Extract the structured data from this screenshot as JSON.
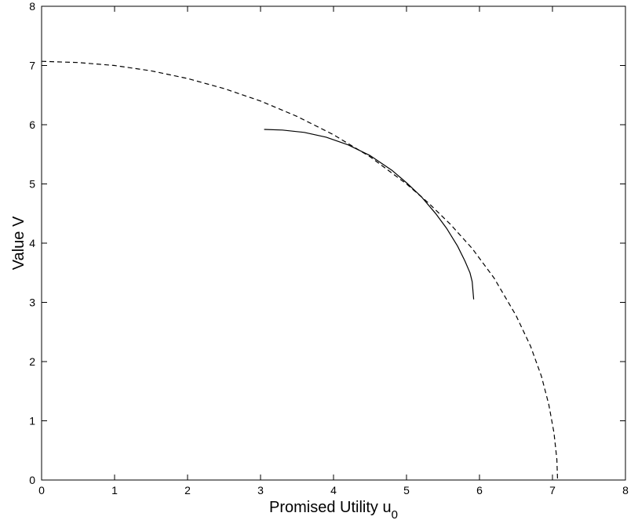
{
  "chart_data": {
    "type": "line",
    "title": "",
    "xlabel": "Promised Utility u",
    "xlabel_sub": "0",
    "ylabel": "Value V",
    "xlim": [
      0,
      8
    ],
    "ylim": [
      0,
      8
    ],
    "xticks": [
      0,
      1,
      2,
      3,
      4,
      5,
      6,
      7,
      8
    ],
    "yticks": [
      0,
      1,
      2,
      3,
      4,
      5,
      6,
      7,
      8
    ],
    "grid": false,
    "legend": "none",
    "series": [
      {
        "style": "dashed",
        "color": "#000000",
        "x": [
          0.0,
          0.5,
          1.0,
          1.5,
          2.0,
          2.5,
          3.0,
          3.5,
          4.0,
          4.5,
          5.0,
          5.3,
          5.6,
          5.9,
          6.2,
          6.5,
          6.7,
          6.85,
          6.95,
          7.02,
          7.06,
          7.07
        ],
        "y": [
          7.07,
          7.05,
          7.0,
          6.91,
          6.78,
          6.61,
          6.4,
          6.14,
          5.83,
          5.46,
          5.0,
          4.68,
          4.32,
          3.91,
          3.41,
          2.78,
          2.26,
          1.75,
          1.27,
          0.8,
          0.35,
          0.0
        ]
      },
      {
        "style": "solid",
        "color": "#000000",
        "x": [
          3.05,
          3.3,
          3.6,
          3.9,
          4.2,
          4.5,
          4.8,
          5.0,
          5.2,
          5.4,
          5.55,
          5.7,
          5.8,
          5.87,
          5.9,
          5.92
        ],
        "y": [
          5.92,
          5.91,
          5.87,
          5.79,
          5.66,
          5.48,
          5.23,
          5.02,
          4.79,
          4.5,
          4.25,
          3.95,
          3.7,
          3.5,
          3.35,
          3.05
        ]
      }
    ]
  }
}
